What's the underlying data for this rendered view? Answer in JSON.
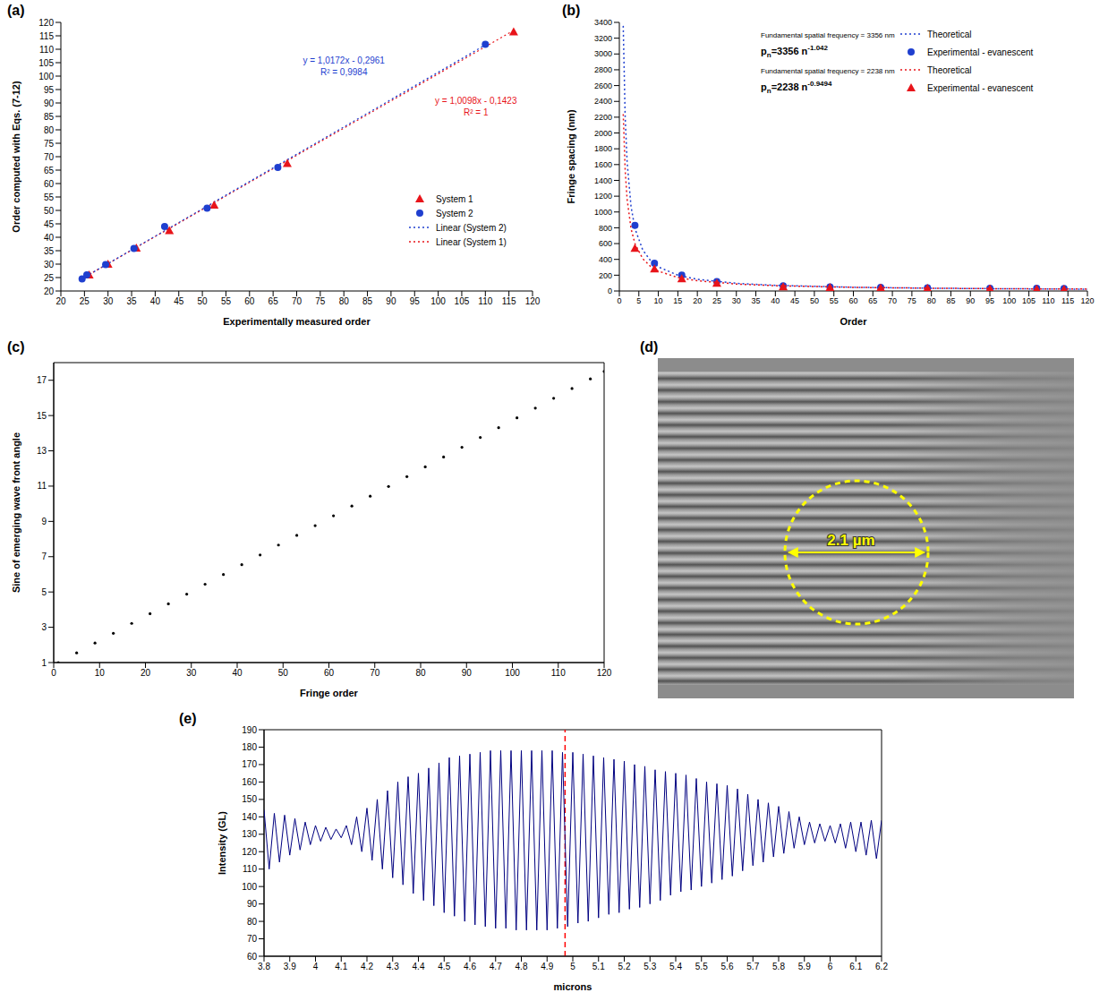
{
  "chart_data": [
    {
      "type": "scatter",
      "panel": "(a)",
      "x_label": "Experimentally measured order",
      "y_label": "Order computed with Eqs. (7-12)",
      "xlim": [
        20,
        120
      ],
      "ylim": [
        20,
        120
      ],
      "xticks": [
        20,
        25,
        30,
        35,
        40,
        45,
        50,
        55,
        60,
        65,
        70,
        75,
        80,
        85,
        90,
        95,
        100,
        105,
        110,
        115,
        120
      ],
      "yticks": [
        20,
        25,
        30,
        35,
        40,
        45,
        50,
        55,
        60,
        65,
        70,
        75,
        80,
        85,
        90,
        95,
        100,
        105,
        110,
        115,
        120
      ],
      "grid": false,
      "legend": "lower right",
      "series": [
        {
          "name": "System 1",
          "color": "#e8141a",
          "marker": "triangle",
          "x": [
            26,
            30,
            36,
            43,
            52.5,
            68,
            116
          ],
          "values": [
            26,
            30,
            36,
            42.5,
            52,
            67.5,
            116.5
          ],
          "fit": {
            "name": "Linear (System 1)",
            "line_style": "dotted",
            "slope": 1.0098,
            "intercept": -0.1423,
            "equation": "y = 1,0098x - 0,1423",
            "r2_label": "R² = 1"
          }
        },
        {
          "name": "System 2",
          "color": "#1f3fcf",
          "marker": "circle",
          "x": [
            24.5,
            25.5,
            29.5,
            35.5,
            42,
            51,
            66,
            110
          ],
          "values": [
            24.5,
            26,
            29.8,
            35.8,
            44,
            50.8,
            66,
            111.8
          ],
          "fit": {
            "name": "Linear (System 2)",
            "line_style": "dotted",
            "slope": 1.0172,
            "intercept": -0.2961,
            "equation": "y = 1,0172x - 0,2961",
            "r2_label": "R² = 0,9984"
          }
        }
      ]
    },
    {
      "type": "scatter",
      "panel": "(b)",
      "x_label": "Order",
      "y_label": "Fringe spacing (nm)",
      "xlim": [
        0,
        120
      ],
      "ylim": [
        0,
        3400
      ],
      "xticks": [
        0,
        5,
        10,
        15,
        20,
        25,
        30,
        35,
        40,
        45,
        50,
        55,
        60,
        65,
        70,
        75,
        80,
        85,
        90,
        95,
        100,
        105,
        110,
        115,
        120
      ],
      "yticks": [
        0,
        200,
        400,
        600,
        800,
        1000,
        1200,
        1400,
        1600,
        1800,
        2000,
        2200,
        2400,
        2600,
        2800,
        3000,
        3200,
        3400
      ],
      "grid": false,
      "legend": "upper right",
      "series": [
        {
          "name": "Theoretical",
          "type": "line",
          "line_style": "dotted",
          "color": "#1f3fcf",
          "caption": "Fundamental spatial frequency = 3356 nm",
          "x": [
            1,
            1.5,
            2,
            3,
            4,
            6,
            8,
            10,
            15,
            20,
            30,
            40,
            60,
            80,
            100,
            120
          ],
          "values": [
            3356,
            2199,
            1630,
            1069,
            791,
            519,
            384,
            305,
            200,
            148,
            97,
            72,
            47,
            35,
            28,
            23
          ]
        },
        {
          "name": "Experimental - evanescent",
          "type": "scatter",
          "marker": "circle",
          "color": "#1f3fcf",
          "fit_label": {
            "main": "p",
            "sub": "n",
            "mid": "=3356 n",
            "sup": "-1.042"
          },
          "x": [
            4,
            9,
            16,
            25,
            42,
            54,
            67,
            79,
            95,
            107,
            114
          ],
          "values": [
            830,
            350,
            200,
            120,
            65,
            50,
            45,
            40,
            35,
            33,
            30
          ]
        },
        {
          "name": "Theoretical",
          "type": "line",
          "line_style": "dotted",
          "color": "#e8141a",
          "caption": "Fundamental spatial frequency = 2238 nm",
          "x": [
            1,
            1.5,
            2,
            3,
            4,
            6,
            8,
            10,
            15,
            20,
            30,
            40,
            60,
            80,
            100,
            120
          ],
          "values": [
            2238,
            1523,
            1159,
            789,
            600,
            408,
            311,
            251,
            171,
            130,
            88,
            67,
            46,
            35,
            28,
            24
          ]
        },
        {
          "name": "Experimental - evanescent",
          "type": "scatter",
          "marker": "triangle",
          "color": "#e8141a",
          "fit_label": {
            "main": "p",
            "sub": "n",
            "mid": "=2238 n",
            "sup": "-0.9494"
          },
          "x": [
            4,
            9,
            16,
            25,
            42,
            54,
            67,
            79,
            95,
            107,
            114
          ],
          "values": [
            540,
            280,
            155,
            100,
            55,
            45,
            40,
            35,
            28,
            25,
            22
          ]
        }
      ]
    },
    {
      "type": "scatter",
      "panel": "(c)",
      "x_label": "Fringe order",
      "y_label": "Sine of emerging wave front angle",
      "xlim": [
        0,
        120
      ],
      "ylim": [
        1,
        18
      ],
      "xticks": [
        0,
        10,
        20,
        30,
        40,
        50,
        60,
        70,
        80,
        90,
        100,
        110,
        120
      ],
      "yticks": [
        1,
        3,
        5,
        7,
        9,
        11,
        13,
        15,
        17
      ],
      "grid": false,
      "marker": "circle",
      "color": "#000000",
      "x": [
        1,
        5,
        9,
        13,
        17,
        21,
        25,
        29,
        33,
        37,
        41,
        45,
        49,
        53,
        57,
        61,
        65,
        69,
        73,
        77,
        81,
        85,
        89,
        93,
        97,
        101,
        105,
        109,
        113,
        117,
        120
      ],
      "values": [
        1.0,
        1.55,
        2.11,
        2.66,
        3.22,
        3.77,
        4.33,
        4.88,
        5.44,
        5.99,
        6.55,
        7.1,
        7.66,
        8.21,
        8.76,
        9.32,
        9.87,
        10.43,
        10.98,
        11.54,
        12.09,
        12.65,
        13.2,
        13.76,
        14.31,
        14.87,
        15.42,
        15.98,
        16.53,
        17.08,
        17.5
      ]
    },
    {
      "type": "image",
      "panel": "(d)",
      "annotation": "2.1 µm",
      "color": "#ffff00"
    },
    {
      "type": "line",
      "panel": "(e)",
      "x_label": "microns",
      "y_label": "Intensity (GL)",
      "xlim": [
        3.8,
        6.2
      ],
      "ylim": [
        60,
        190
      ],
      "xticks": [
        3.8,
        3.9,
        4,
        4.1,
        4.2,
        4.3,
        4.4,
        4.5,
        4.6,
        4.7,
        4.8,
        4.9,
        5,
        5.1,
        5.2,
        5.3,
        5.4,
        5.5,
        5.6,
        5.7,
        5.8,
        5.9,
        6,
        6.1,
        6.2
      ],
      "yticks": [
        60,
        70,
        80,
        90,
        100,
        110,
        120,
        130,
        140,
        150,
        160,
        170,
        180,
        190
      ],
      "grid": false,
      "color": "#000080",
      "x": [
        3.8,
        3.82,
        3.84,
        3.86,
        3.88,
        3.9,
        3.92,
        3.94,
        3.96,
        3.98,
        4,
        4.02,
        4.04,
        4.06,
        4.08,
        4.1,
        4.12,
        4.14,
        4.16,
        4.18,
        4.2,
        4.22,
        4.24,
        4.26,
        4.28,
        4.3,
        4.32,
        4.34,
        4.36,
        4.38,
        4.4,
        4.42,
        4.44,
        4.46,
        4.48,
        4.5,
        4.52,
        4.54,
        4.56,
        4.58,
        4.6,
        4.62,
        4.64,
        4.66,
        4.68,
        4.7,
        4.72,
        4.74,
        4.76,
        4.78,
        4.8,
        4.82,
        4.84,
        4.86,
        4.88,
        4.9,
        4.92,
        4.94,
        4.96,
        4.98,
        5,
        5.02,
        5.04,
        5.06,
        5.08,
        5.1,
        5.12,
        5.14,
        5.16,
        5.18,
        5.2,
        5.22,
        5.24,
        5.26,
        5.28,
        5.3,
        5.32,
        5.34,
        5.36,
        5.38,
        5.4,
        5.42,
        5.44,
        5.46,
        5.48,
        5.5,
        5.52,
        5.54,
        5.56,
        5.58,
        5.6,
        5.62,
        5.64,
        5.66,
        5.68,
        5.7,
        5.72,
        5.74,
        5.76,
        5.78,
        5.8,
        5.82,
        5.84,
        5.86,
        5.88,
        5.9,
        5.92,
        5.94,
        5.96,
        5.98,
        6,
        6.02,
        6.04,
        6.06,
        6.08,
        6.1,
        6.12,
        6.14,
        6.16,
        6.18,
        6.2
      ],
      "values": [
        144,
        110,
        142,
        114,
        141,
        118,
        139,
        121,
        137,
        124,
        135,
        126,
        134,
        127,
        133,
        128,
        135,
        124,
        140,
        120,
        145,
        115,
        150,
        110,
        155,
        105,
        160,
        101,
        163,
        96,
        165,
        92,
        168,
        89,
        171,
        85,
        174,
        83,
        175,
        80,
        176,
        78,
        177,
        77,
        178,
        76,
        178,
        76,
        178,
        75,
        178,
        75,
        178,
        75,
        178,
        75,
        178,
        76,
        177,
        77,
        177,
        79,
        176,
        80,
        175,
        82,
        174,
        84,
        173,
        85,
        172,
        87,
        170,
        88,
        169,
        90,
        167,
        92,
        166,
        95,
        165,
        97,
        164,
        98,
        162,
        100,
        160,
        102,
        159,
        104,
        158,
        106,
        156,
        109,
        153,
        112,
        150,
        114,
        148,
        117,
        146,
        119,
        143,
        122,
        140,
        124,
        137,
        125,
        136,
        126,
        135,
        125,
        136,
        122,
        137,
        120,
        137,
        118,
        138,
        116,
        138
      ],
      "reference_line": {
        "x": 4.97,
        "color": "#ff0000",
        "line_style": "dashed"
      }
    }
  ]
}
